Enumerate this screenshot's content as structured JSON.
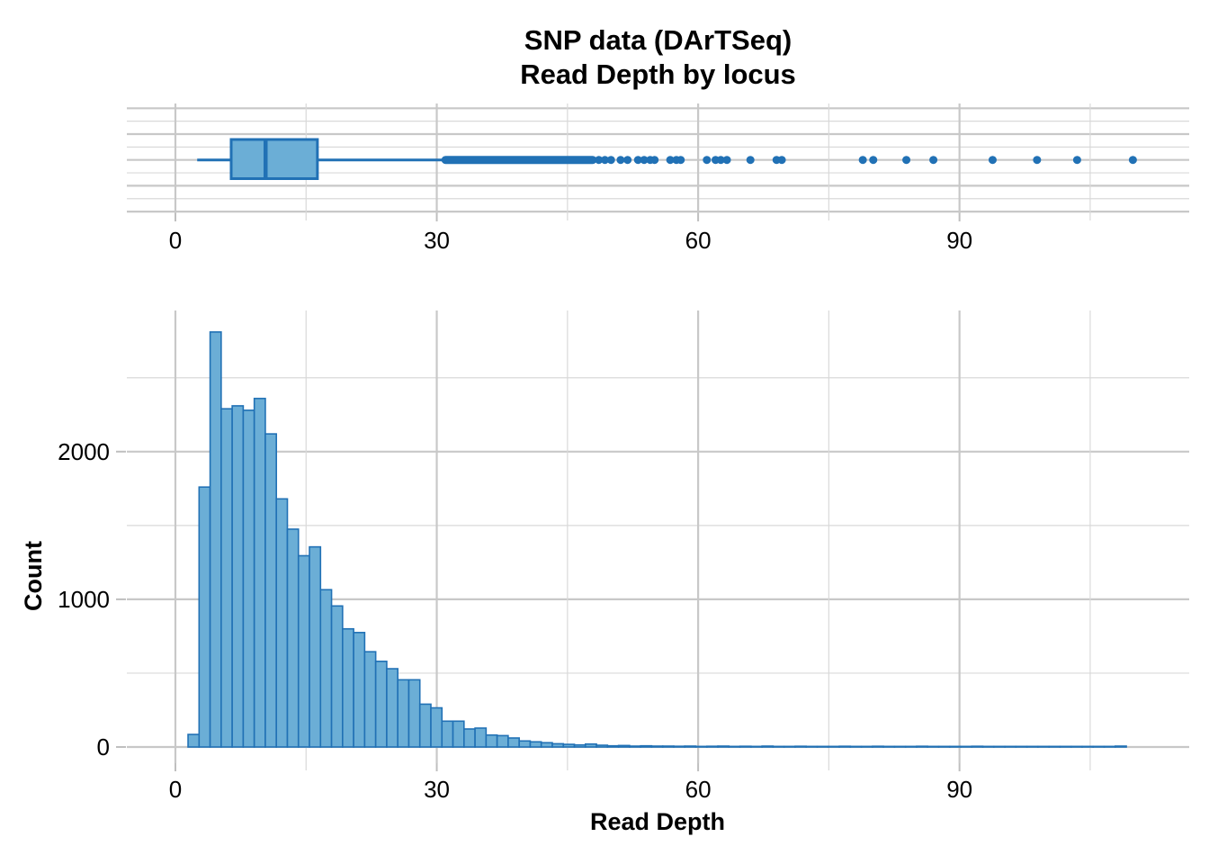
{
  "title": {
    "line1": "SNP data (DArTSeq)",
    "line2": "Read Depth by locus"
  },
  "colors": {
    "bar_fill": "#6baed6",
    "bar_stroke": "#2171b5",
    "point_color": "#2171b5",
    "grid_major": "#c8c8c8",
    "grid_minor": "#d9d9d9",
    "tick_color": "#bfbfbf",
    "text_color": "#000000",
    "background": "#ffffff"
  },
  "x_axis": {
    "title": "Read Depth",
    "ticks_major": [
      0,
      30,
      60,
      90
    ],
    "ticks_minor": [
      15,
      45,
      75,
      105
    ],
    "labels": [
      "0",
      "30",
      "60",
      "90"
    ],
    "range": [
      0,
      112
    ]
  },
  "chart_data": [
    {
      "type": "boxplot",
      "orientation": "horizontal",
      "variable": "Read Depth",
      "whisker_low": 2.5,
      "q1": 6.4,
      "median": 10.35,
      "q3": 16.3,
      "whisker_high": 30.8,
      "outlier_band": {
        "from": 31.0,
        "to": 47.9
      },
      "outliers": [
        48.6,
        49.3,
        50.0,
        51.1,
        51.9,
        53.1,
        53.8,
        54.5,
        55.0,
        56.8,
        57.5,
        58.0,
        61.0,
        62.0,
        62.6,
        63.3,
        66.0,
        69.0,
        69.6,
        78.9,
        80.1,
        83.9,
        87.0,
        93.8,
        98.9,
        103.5,
        109.9
      ],
      "xlim": [
        0,
        112
      ],
      "grid": true
    },
    {
      "type": "histogram",
      "xlabel": "Read Depth",
      "ylabel": "Count",
      "bin_start": 1.45,
      "bin_width": 1.267,
      "counts": [
        85,
        1760,
        2810,
        2290,
        2310,
        2280,
        2360,
        2120,
        1680,
        1475,
        1295,
        1355,
        1065,
        955,
        800,
        775,
        645,
        580,
        530,
        455,
        455,
        290,
        265,
        175,
        175,
        122,
        128,
        81,
        77,
        61,
        41,
        35,
        29,
        22,
        18,
        14,
        20,
        12,
        8,
        10,
        6,
        8,
        6,
        6,
        5,
        6,
        4,
        5,
        6,
        4,
        5,
        4,
        6,
        4,
        4,
        5,
        4,
        4,
        4,
        5,
        4,
        4,
        5,
        4,
        4,
        4,
        5,
        4,
        4,
        4,
        4,
        5,
        4,
        4,
        4,
        4,
        4,
        4,
        4,
        4,
        4,
        4,
        4,
        4,
        6
      ],
      "y_ticks_major": [
        0,
        1000,
        2000
      ],
      "y_ticks_minor": [
        500,
        1500,
        2500
      ],
      "y_labels": [
        "0",
        "1000",
        "2000"
      ],
      "xlim": [
        0,
        112
      ],
      "ylim": [
        0,
        2950
      ],
      "grid": true
    }
  ]
}
